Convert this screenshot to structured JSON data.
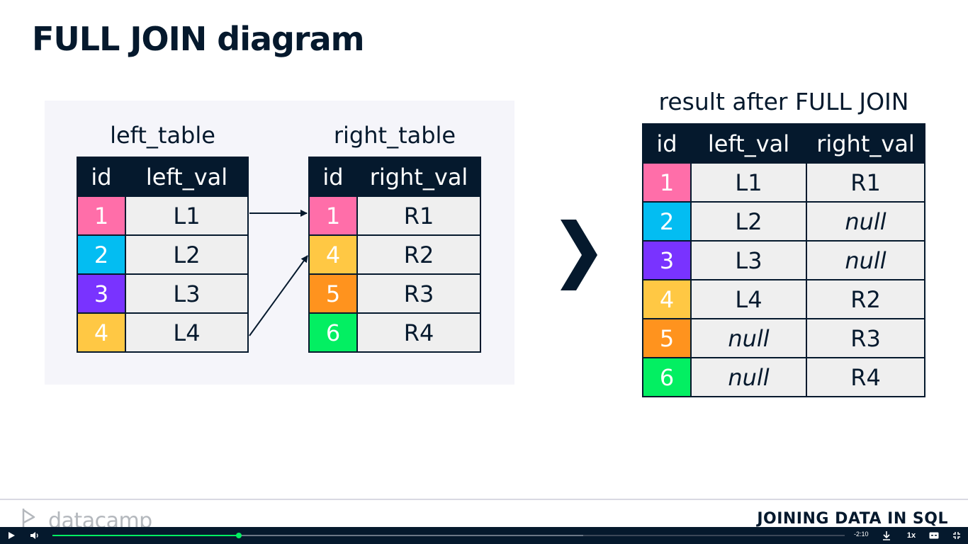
{
  "slide": {
    "title": "FULL JOIN diagram"
  },
  "colors": {
    "navy": "#05192d",
    "pink": "#ff6ea9",
    "blue": "#03bdf2",
    "purple": "#7933ff",
    "yellow": "#ffc844",
    "orange": "#ff931e",
    "green": "#03ef62",
    "cell_bg": "#efefef",
    "panel_bg": "#f5f5fa"
  },
  "left_table": {
    "caption": "left_table",
    "headers": [
      "id",
      "left_val"
    ],
    "rows": [
      {
        "id": "1",
        "val": "L1"
      },
      {
        "id": "2",
        "val": "L2"
      },
      {
        "id": "3",
        "val": "L3"
      },
      {
        "id": "4",
        "val": "L4"
      }
    ]
  },
  "right_table": {
    "caption": "right_table",
    "headers": [
      "id",
      "right_val"
    ],
    "rows": [
      {
        "id": "1",
        "val": "R1"
      },
      {
        "id": "4",
        "val": "R2"
      },
      {
        "id": "5",
        "val": "R3"
      },
      {
        "id": "6",
        "val": "R4"
      }
    ]
  },
  "result_table": {
    "caption": "result after FULL JOIN",
    "headers": [
      "id",
      "left_val",
      "right_val"
    ],
    "rows": [
      {
        "id": "1",
        "left": "L1",
        "right": "R1"
      },
      {
        "id": "2",
        "left": "L2",
        "right": "null"
      },
      {
        "id": "3",
        "left": "L3",
        "right": "null"
      },
      {
        "id": "4",
        "left": "L4",
        "right": "R2"
      },
      {
        "id": "5",
        "left": "null",
        "right": "R3"
      },
      {
        "id": "6",
        "left": "null",
        "right": "R4"
      }
    ]
  },
  "footer": {
    "brand": "datacamp",
    "course": "JOINING DATA IN SQL"
  },
  "player": {
    "play_icon": "play-icon",
    "volume_icon": "volume-icon",
    "time_remaining": "-2:10",
    "progress_fraction": 0.235,
    "buffered_fraction": 0.67,
    "speed": "1x",
    "download_icon": "download-icon",
    "cc_icon": "closed-captions-icon",
    "fullscreen_icon": "exit-fullscreen-icon"
  }
}
